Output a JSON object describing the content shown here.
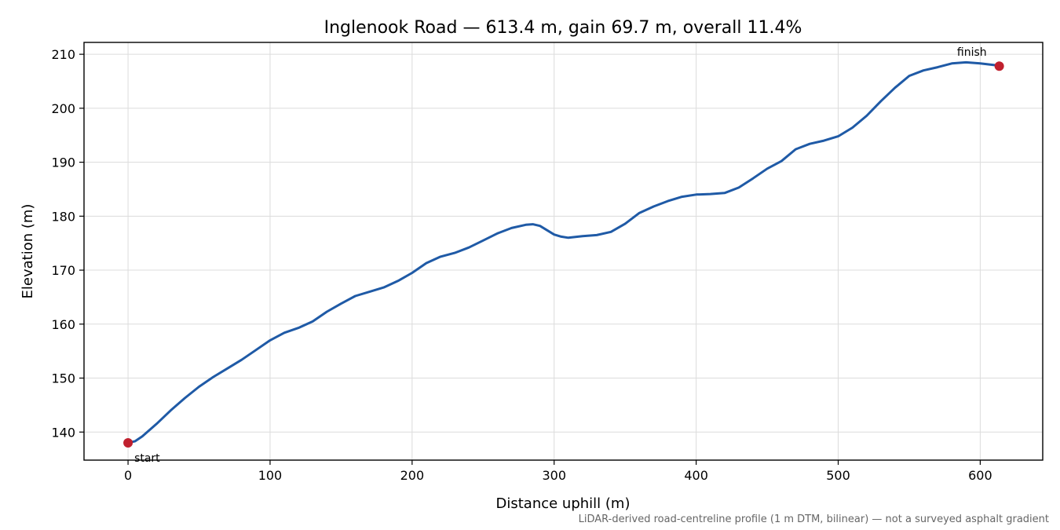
{
  "chart_data": {
    "type": "line",
    "title": "Inglenook Road — 613.4 m, gain 69.7 m, overall 11.4%",
    "xlabel": "Distance uphill (m)",
    "ylabel": "Elevation (m)",
    "xlim": [
      -31,
      644
    ],
    "ylim": [
      134.8,
      212.2
    ],
    "x_ticks": [
      0,
      100,
      200,
      300,
      400,
      500,
      600
    ],
    "y_ticks": [
      140,
      150,
      160,
      170,
      180,
      190,
      200,
      210
    ],
    "grid": true,
    "line_color": "#1f5aa6",
    "marker_color": "#c0202e",
    "series": [
      {
        "x": [
          0,
          5,
          10,
          20,
          30,
          40,
          50,
          60,
          70,
          80,
          90,
          100,
          110,
          120,
          130,
          140,
          150,
          160,
          170,
          180,
          190,
          200,
          210,
          220,
          230,
          240,
          250,
          260,
          270,
          280,
          285,
          290,
          300,
          305,
          310,
          320,
          330,
          340,
          350,
          360,
          370,
          380,
          390,
          400,
          410,
          420,
          430,
          440,
          450,
          460,
          470,
          480,
          490,
          500,
          510,
          520,
          530,
          540,
          550,
          560,
          570,
          580,
          590,
          600,
          610,
          613.4
        ],
        "values": [
          138.0,
          138.3,
          139.2,
          141.5,
          144.0,
          146.3,
          148.4,
          150.2,
          151.8,
          153.4,
          155.2,
          157.0,
          158.4,
          159.3,
          160.5,
          162.3,
          163.8,
          165.2,
          166.0,
          166.8,
          168.0,
          169.5,
          171.3,
          172.5,
          173.2,
          174.2,
          175.5,
          176.8,
          177.8,
          178.4,
          178.5,
          178.2,
          176.6,
          176.2,
          176.0,
          176.3,
          176.5,
          177.1,
          178.6,
          180.6,
          181.8,
          182.8,
          183.6,
          184.0,
          184.1,
          184.3,
          185.3,
          187.0,
          188.8,
          190.2,
          192.4,
          193.4,
          194.0,
          194.8,
          196.4,
          198.6,
          201.3,
          203.8,
          206.0,
          207.0,
          207.6,
          208.3,
          208.5,
          208.3,
          208.0,
          207.8
        ]
      }
    ],
    "annotations": [
      {
        "text": "start",
        "x": 0,
        "y": 138.0,
        "placement": "below-right"
      },
      {
        "text": "finish",
        "x": 613.4,
        "y": 207.8,
        "placement": "above-left"
      }
    ],
    "footnote": "LiDAR-derived road-centreline profile (1 m DTM, bilinear) — not a surveyed asphalt gradient"
  }
}
